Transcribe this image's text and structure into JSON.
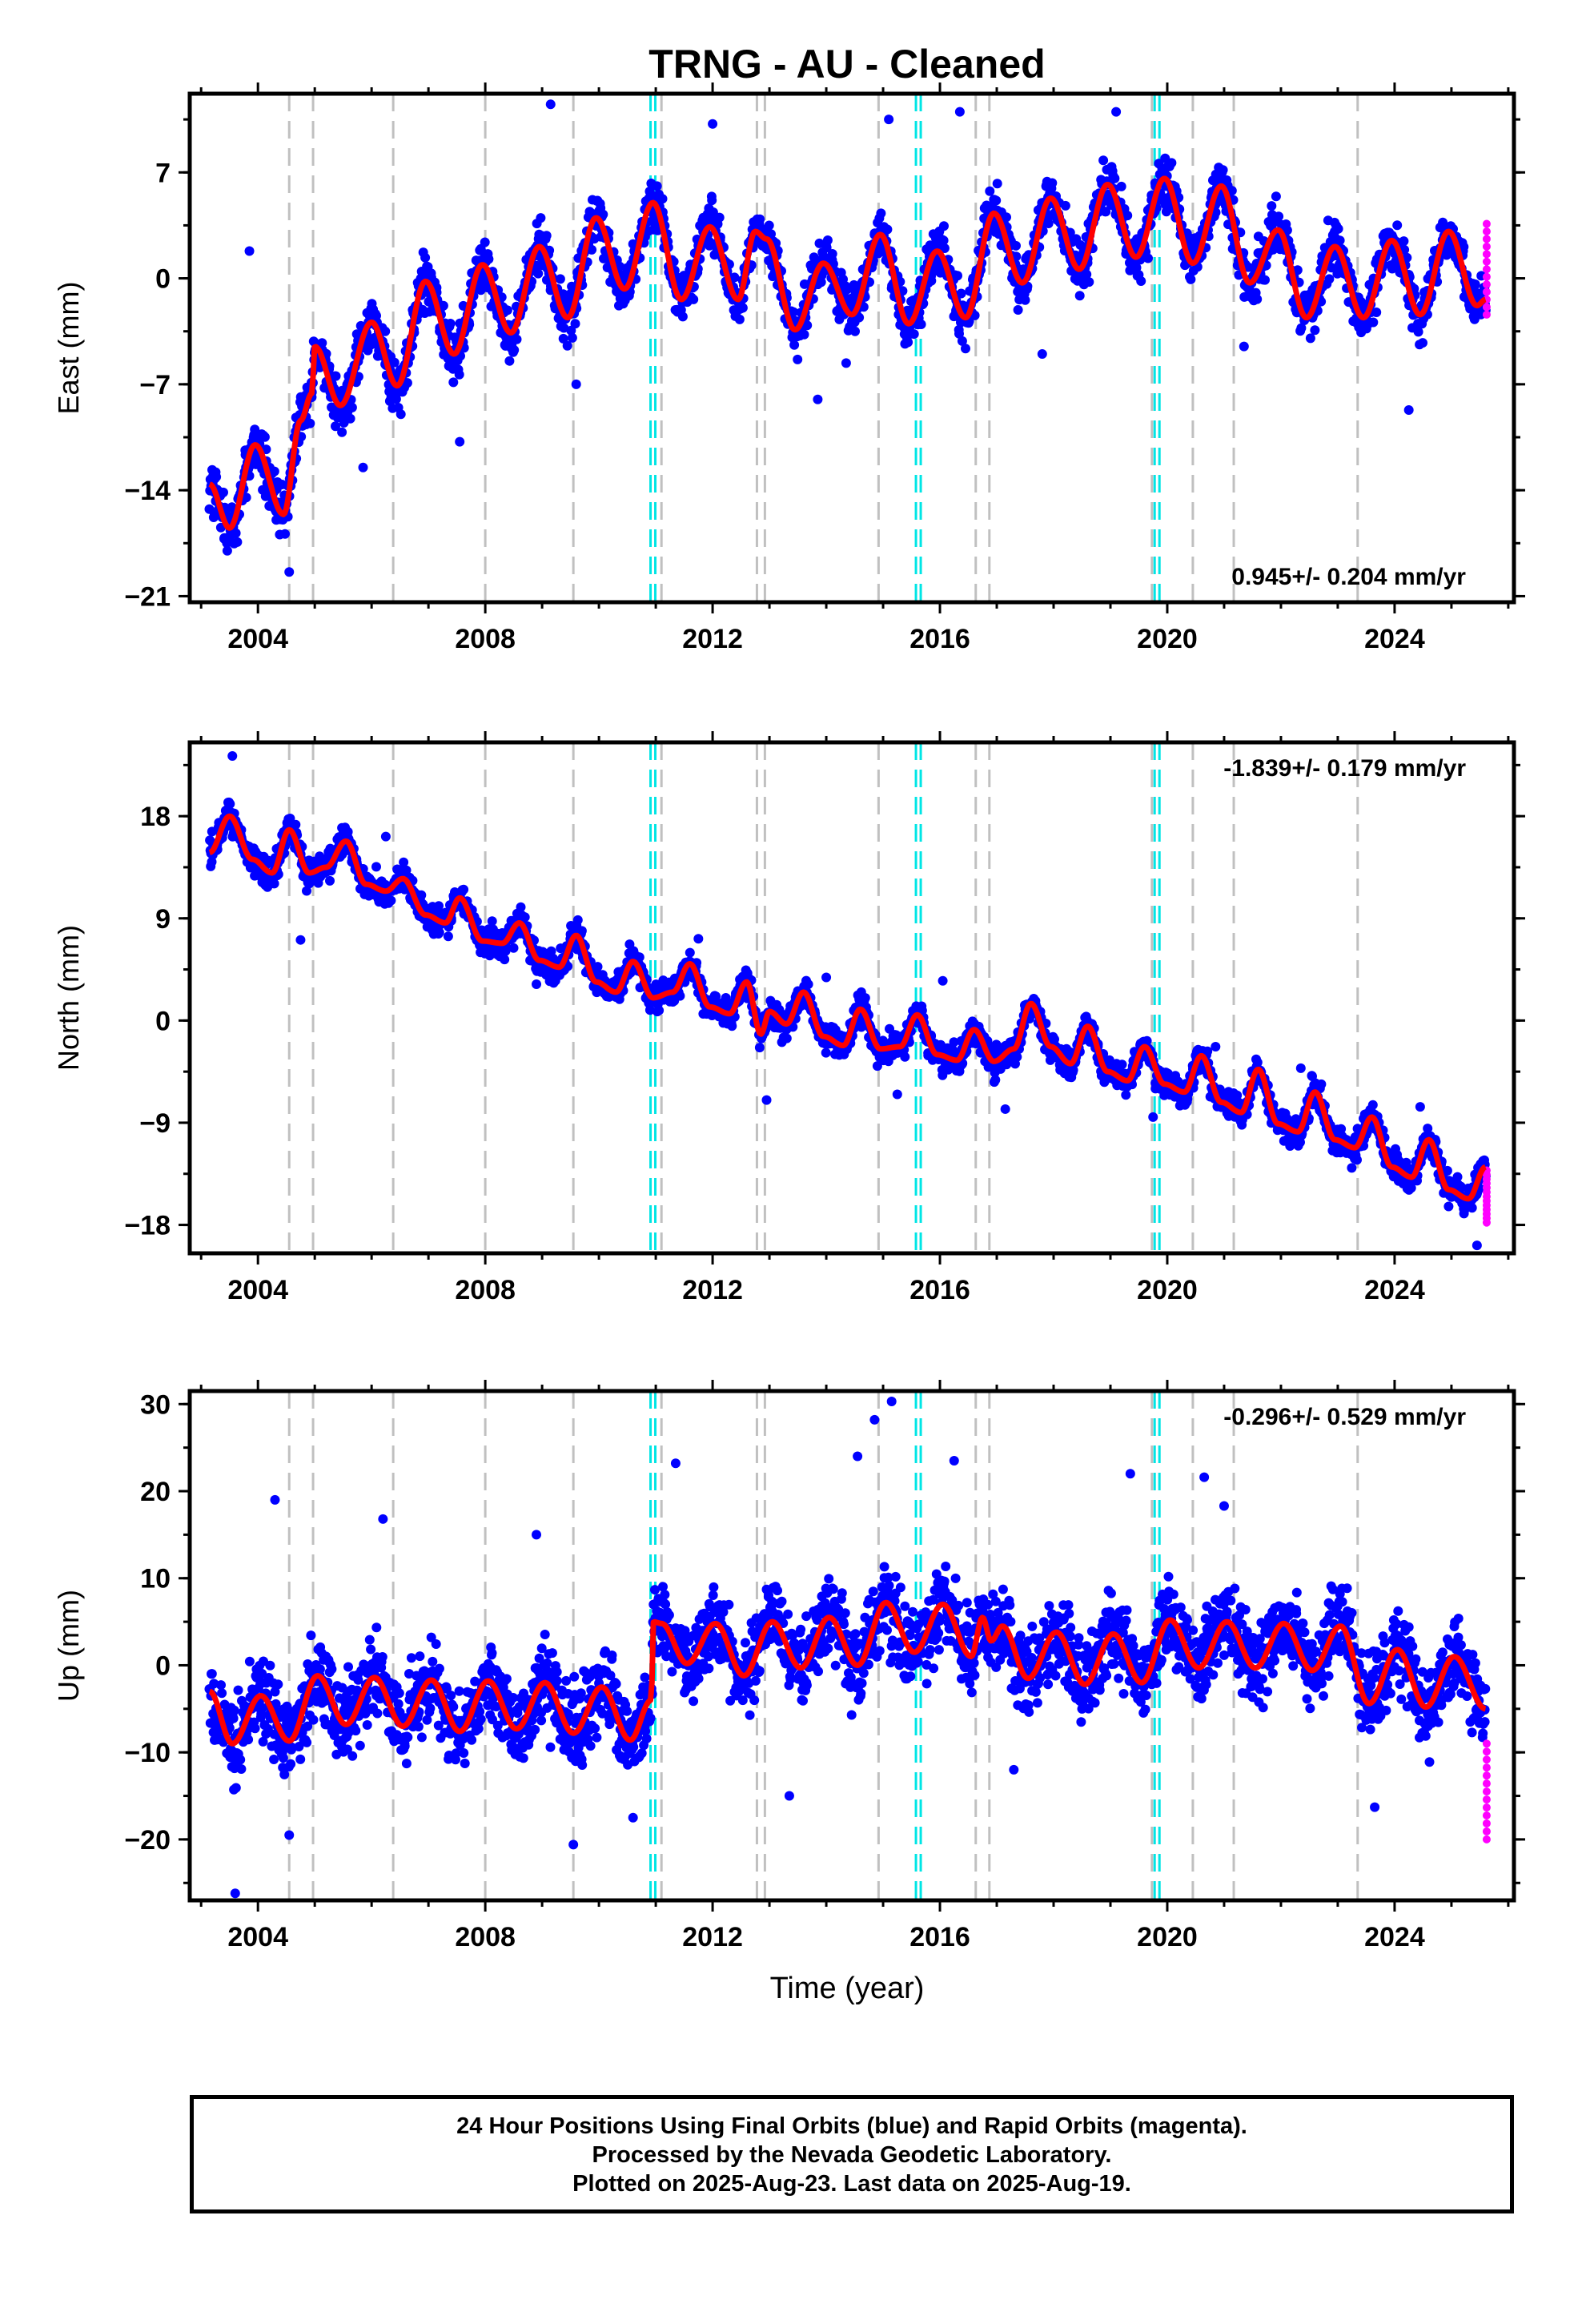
{
  "title": "TRNG  - AU - Cleaned",
  "footer": {
    "line1": "24 Hour Positions Using Final Orbits (blue) and Rapid Orbits (magenta).",
    "line2": "Processed by the Nevada Geodetic Laboratory.",
    "line3": "Plotted on 2025-Aug-23. Last data on 2025-Aug-19."
  },
  "colors": {
    "final_orbits": "#0000ff",
    "rapid_orbits": "#ff00ff",
    "model_fit": "#ff0000",
    "equipment_change": "#c0c0c0",
    "earthquake": "#00e5e5"
  },
  "chart_data": [
    {
      "type": "scatter",
      "ylabel": "East (mm)",
      "xlabel": "",
      "xlim": [
        2002.8,
        2026.1
      ],
      "ylim": [
        -21.4,
        12.2
      ],
      "xticks": [
        2004,
        2008,
        2012,
        2016,
        2020,
        2024
      ],
      "yticks": [
        -21,
        -14,
        -7,
        0,
        7
      ],
      "rate_label": "0.945+/- 0.204 mm/yr",
      "rate_position": "bottom-right",
      "gray_lines": [
        2004.55,
        2004.97,
        2006.38,
        2008.0,
        2009.55,
        2011.1,
        2012.78,
        2012.92,
        2014.92,
        2016.63,
        2016.87,
        2019.73,
        2020.45,
        2021.17,
        2023.35
      ],
      "cyan_lines": [
        2010.95,
        2015.62,
        2019.82
      ],
      "fit": [
        {
          "x": 2003.15,
          "y": -13.6
        },
        {
          "x": 2003.5,
          "y": -16.5
        },
        {
          "x": 2003.95,
          "y": -11.0
        },
        {
          "x": 2004.45,
          "y": -15.6
        },
        {
          "x": 2004.75,
          "y": -9.4
        },
        {
          "x": 2004.95,
          "y": -7.6
        },
        {
          "x": 2005.0,
          "y": -4.5
        },
        {
          "x": 2005.45,
          "y": -8.4
        },
        {
          "x": 2006.0,
          "y": -2.9
        },
        {
          "x": 2006.45,
          "y": -7.1
        },
        {
          "x": 2006.95,
          "y": -0.2
        },
        {
          "x": 2007.45,
          "y": -5.0
        },
        {
          "x": 2007.95,
          "y": 0.9
        },
        {
          "x": 2008.45,
          "y": -3.6
        },
        {
          "x": 2008.95,
          "y": 2.1
        },
        {
          "x": 2009.45,
          "y": -2.6
        },
        {
          "x": 2009.95,
          "y": 4.0
        },
        {
          "x": 2010.45,
          "y": -0.7
        },
        {
          "x": 2010.95,
          "y": 5.0
        },
        {
          "x": 2011.45,
          "y": -1.4
        },
        {
          "x": 2011.95,
          "y": 3.4
        },
        {
          "x": 2012.45,
          "y": -1.4
        },
        {
          "x": 2012.75,
          "y": 3.1
        },
        {
          "x": 2012.95,
          "y": 2.6
        },
        {
          "x": 2013.45,
          "y": -3.4
        },
        {
          "x": 2013.95,
          "y": 1.0
        },
        {
          "x": 2014.45,
          "y": -2.4
        },
        {
          "x": 2014.95,
          "y": 2.9
        },
        {
          "x": 2015.45,
          "y": -3.0
        },
        {
          "x": 2015.95,
          "y": 1.8
        },
        {
          "x": 2016.45,
          "y": -2.6
        },
        {
          "x": 2016.95,
          "y": 4.3
        },
        {
          "x": 2017.45,
          "y": -0.3
        },
        {
          "x": 2017.95,
          "y": 5.3
        },
        {
          "x": 2018.45,
          "y": 0.6
        },
        {
          "x": 2018.95,
          "y": 6.2
        },
        {
          "x": 2019.45,
          "y": 1.4
        },
        {
          "x": 2019.95,
          "y": 6.6
        },
        {
          "x": 2020.45,
          "y": 1.0
        },
        {
          "x": 2020.95,
          "y": 6.1
        },
        {
          "x": 2021.45,
          "y": -0.3
        },
        {
          "x": 2021.95,
          "y": 3.2
        },
        {
          "x": 2022.45,
          "y": -2.6
        },
        {
          "x": 2022.95,
          "y": 2.1
        },
        {
          "x": 2023.45,
          "y": -2.6
        },
        {
          "x": 2023.95,
          "y": 2.5
        },
        {
          "x": 2024.45,
          "y": -2.4
        },
        {
          "x": 2024.95,
          "y": 3.1
        },
        {
          "x": 2025.45,
          "y": -1.8
        },
        {
          "x": 2025.6,
          "y": -1.4
        }
      ],
      "scatter_half_width": 2.8,
      "rapid": {
        "x": 2025.62,
        "y_min": -2.4,
        "y_max": 3.6
      },
      "outliers": [
        {
          "x": 2003.85,
          "y": 1.8
        },
        {
          "x": 2007.55,
          "y": -10.8
        },
        {
          "x": 2009.15,
          "y": 11.5
        },
        {
          "x": 2017.8,
          "y": -5.0
        },
        {
          "x": 2024.25,
          "y": -8.7
        },
        {
          "x": 2012.0,
          "y": 10.2
        },
        {
          "x": 2015.1,
          "y": 10.5
        },
        {
          "x": 2019.1,
          "y": 11.0
        },
        {
          "x": 2021.35,
          "y": -4.5
        },
        {
          "x": 2014.35,
          "y": -5.6
        },
        {
          "x": 2009.6,
          "y": -7.0
        },
        {
          "x": 2005.85,
          "y": -12.5
        },
        {
          "x": 2004.55,
          "y": -19.4
        },
        {
          "x": 2016.35,
          "y": 11.0
        },
        {
          "x": 2013.85,
          "y": -8.0
        }
      ]
    },
    {
      "type": "scatter",
      "ylabel": "North (mm)",
      "xlabel": "",
      "xlim": [
        2002.8,
        2026.1
      ],
      "ylim": [
        -20.5,
        24.5
      ],
      "xticks": [
        2004,
        2008,
        2012,
        2016,
        2020,
        2024
      ],
      "yticks": [
        -18,
        -9,
        0,
        9,
        18
      ],
      "rate_label": "-1.839+/- 0.179 mm/yr",
      "rate_position": "top-right",
      "gray_lines": [
        2004.55,
        2004.97,
        2006.38,
        2008.0,
        2009.55,
        2011.1,
        2012.78,
        2012.92,
        2014.92,
        2016.63,
        2016.87,
        2019.73,
        2020.45,
        2021.17,
        2023.35
      ],
      "cyan_lines": [
        2010.95,
        2015.62,
        2019.82
      ],
      "fit": [
        {
          "x": 2003.15,
          "y": 14.8
        },
        {
          "x": 2003.5,
          "y": 18.0
        },
        {
          "x": 2003.9,
          "y": 14.2
        },
        {
          "x": 2004.25,
          "y": 13.0
        },
        {
          "x": 2004.55,
          "y": 16.8
        },
        {
          "x": 2004.9,
          "y": 13.0
        },
        {
          "x": 2005.2,
          "y": 13.5
        },
        {
          "x": 2005.55,
          "y": 15.8
        },
        {
          "x": 2005.9,
          "y": 12.0
        },
        {
          "x": 2006.25,
          "y": 11.4
        },
        {
          "x": 2006.55,
          "y": 12.5
        },
        {
          "x": 2006.95,
          "y": 9.3
        },
        {
          "x": 2007.3,
          "y": 8.6
        },
        {
          "x": 2007.55,
          "y": 10.8
        },
        {
          "x": 2007.95,
          "y": 7.0
        },
        {
          "x": 2008.3,
          "y": 6.8
        },
        {
          "x": 2008.6,
          "y": 8.6
        },
        {
          "x": 2008.95,
          "y": 5.3
        },
        {
          "x": 2009.3,
          "y": 4.7
        },
        {
          "x": 2009.6,
          "y": 7.5
        },
        {
          "x": 2009.95,
          "y": 3.4
        },
        {
          "x": 2010.3,
          "y": 2.5
        },
        {
          "x": 2010.6,
          "y": 5.2
        },
        {
          "x": 2010.95,
          "y": 2.0
        },
        {
          "x": 2011.3,
          "y": 2.5
        },
        {
          "x": 2011.6,
          "y": 5.0
        },
        {
          "x": 2011.95,
          "y": 1.2
        },
        {
          "x": 2012.3,
          "y": 0.6
        },
        {
          "x": 2012.6,
          "y": 3.4
        },
        {
          "x": 2012.85,
          "y": -1.2
        },
        {
          "x": 2013.0,
          "y": 0.8
        },
        {
          "x": 2013.3,
          "y": -0.3
        },
        {
          "x": 2013.6,
          "y": 2.5
        },
        {
          "x": 2013.95,
          "y": -1.4
        },
        {
          "x": 2014.3,
          "y": -2.2
        },
        {
          "x": 2014.6,
          "y": 1.0
        },
        {
          "x": 2014.95,
          "y": -2.5
        },
        {
          "x": 2015.3,
          "y": -2.3
        },
        {
          "x": 2015.6,
          "y": 0.5
        },
        {
          "x": 2015.95,
          "y": -3.0
        },
        {
          "x": 2016.3,
          "y": -3.5
        },
        {
          "x": 2016.6,
          "y": -0.8
        },
        {
          "x": 2016.95,
          "y": -3.6
        },
        {
          "x": 2017.3,
          "y": -2.5
        },
        {
          "x": 2017.6,
          "y": 1.5
        },
        {
          "x": 2017.95,
          "y": -2.3
        },
        {
          "x": 2018.3,
          "y": -3.8
        },
        {
          "x": 2018.6,
          "y": -0.5
        },
        {
          "x": 2018.95,
          "y": -4.5
        },
        {
          "x": 2019.3,
          "y": -5.3
        },
        {
          "x": 2019.6,
          "y": -2.3
        },
        {
          "x": 2019.95,
          "y": -5.6
        },
        {
          "x": 2020.3,
          "y": -6.3
        },
        {
          "x": 2020.6,
          "y": -3.1
        },
        {
          "x": 2020.95,
          "y": -7.2
        },
        {
          "x": 2021.3,
          "y": -8.1
        },
        {
          "x": 2021.6,
          "y": -4.3
        },
        {
          "x": 2021.95,
          "y": -9.1
        },
        {
          "x": 2022.3,
          "y": -9.8
        },
        {
          "x": 2022.6,
          "y": -6.3
        },
        {
          "x": 2022.95,
          "y": -10.5
        },
        {
          "x": 2023.3,
          "y": -11.2
        },
        {
          "x": 2023.6,
          "y": -8.5
        },
        {
          "x": 2023.95,
          "y": -12.9
        },
        {
          "x": 2024.3,
          "y": -13.8
        },
        {
          "x": 2024.6,
          "y": -10.5
        },
        {
          "x": 2024.95,
          "y": -14.9
        },
        {
          "x": 2025.3,
          "y": -15.7
        },
        {
          "x": 2025.6,
          "y": -12.9
        }
      ],
      "scatter_half_width": 2.2,
      "rapid": {
        "x": 2025.62,
        "y_min": -17.8,
        "y_max": -13.2
      },
      "outliers": [
        {
          "x": 2003.55,
          "y": 23.3
        },
        {
          "x": 2004.75,
          "y": 7.1
        },
        {
          "x": 2008.9,
          "y": 3.2
        },
        {
          "x": 2015.25,
          "y": -6.5
        },
        {
          "x": 2016.05,
          "y": 3.5
        },
        {
          "x": 2017.15,
          "y": -7.8
        },
        {
          "x": 2012.95,
          "y": -7.0
        },
        {
          "x": 2019.75,
          "y": -8.5
        },
        {
          "x": 2020.85,
          "y": -2.3
        },
        {
          "x": 2025.45,
          "y": -19.8
        },
        {
          "x": 2011.75,
          "y": 7.2
        },
        {
          "x": 2006.25,
          "y": 16.2
        },
        {
          "x": 2022.35,
          "y": -4.2
        },
        {
          "x": 2024.45,
          "y": -7.6
        },
        {
          "x": 2014.0,
          "y": 3.8
        }
      ]
    },
    {
      "type": "scatter",
      "ylabel": "Up (mm)",
      "xlabel": "Time (year)",
      "xlim": [
        2002.8,
        2026.1
      ],
      "ylim": [
        -27,
        31.5
      ],
      "xticks": [
        2004,
        2008,
        2012,
        2016,
        2020,
        2024
      ],
      "yticks": [
        -20,
        -10,
        0,
        10,
        20,
        30
      ],
      "rate_label": "-0.296+/- 0.529 mm/yr",
      "rate_position": "top-right",
      "gray_lines": [
        2004.55,
        2004.97,
        2006.38,
        2008.0,
        2009.55,
        2011.1,
        2012.78,
        2012.92,
        2014.92,
        2016.63,
        2016.87,
        2019.73,
        2020.45,
        2021.17,
        2023.35
      ],
      "cyan_lines": [
        2010.95,
        2015.62,
        2019.82
      ],
      "fit": [
        {
          "x": 2003.15,
          "y": -3.0
        },
        {
          "x": 2003.55,
          "y": -9.0
        },
        {
          "x": 2004.05,
          "y": -3.5
        },
        {
          "x": 2004.55,
          "y": -8.7
        },
        {
          "x": 2005.05,
          "y": -1.2
        },
        {
          "x": 2005.55,
          "y": -6.8
        },
        {
          "x": 2006.05,
          "y": -1.4
        },
        {
          "x": 2006.55,
          "y": -7.0
        },
        {
          "x": 2007.05,
          "y": -1.7
        },
        {
          "x": 2007.55,
          "y": -7.6
        },
        {
          "x": 2008.05,
          "y": -1.8
        },
        {
          "x": 2008.55,
          "y": -7.3
        },
        {
          "x": 2009.05,
          "y": -2.0
        },
        {
          "x": 2009.55,
          "y": -7.8
        },
        {
          "x": 2010.05,
          "y": -2.5
        },
        {
          "x": 2010.55,
          "y": -8.6
        },
        {
          "x": 2010.92,
          "y": -4.0
        },
        {
          "x": 2010.96,
          "y": 5.0
        },
        {
          "x": 2011.1,
          "y": 4.8
        },
        {
          "x": 2011.55,
          "y": 0.2
        },
        {
          "x": 2012.05,
          "y": 4.8
        },
        {
          "x": 2012.55,
          "y": -1.2
        },
        {
          "x": 2013.05,
          "y": 5.0
        },
        {
          "x": 2013.55,
          "y": -0.3
        },
        {
          "x": 2014.05,
          "y": 5.5
        },
        {
          "x": 2014.55,
          "y": 0.0
        },
        {
          "x": 2015.05,
          "y": 7.2
        },
        {
          "x": 2015.55,
          "y": 1.5
        },
        {
          "x": 2016.05,
          "y": 7.0
        },
        {
          "x": 2016.55,
          "y": 1.0
        },
        {
          "x": 2016.75,
          "y": 5.5
        },
        {
          "x": 2016.9,
          "y": 2.8
        },
        {
          "x": 2017.1,
          "y": 4.5
        },
        {
          "x": 2017.55,
          "y": -1.5
        },
        {
          "x": 2018.05,
          "y": 3.8
        },
        {
          "x": 2018.55,
          "y": -2.2
        },
        {
          "x": 2019.05,
          "y": 3.6
        },
        {
          "x": 2019.55,
          "y": -2.0
        },
        {
          "x": 2020.05,
          "y": 5.2
        },
        {
          "x": 2020.55,
          "y": -0.3
        },
        {
          "x": 2021.05,
          "y": 5.0
        },
        {
          "x": 2021.55,
          "y": -0.3
        },
        {
          "x": 2022.05,
          "y": 4.8
        },
        {
          "x": 2022.55,
          "y": -0.6
        },
        {
          "x": 2023.05,
          "y": 4.5
        },
        {
          "x": 2023.55,
          "y": -4.4
        },
        {
          "x": 2024.05,
          "y": 1.8
        },
        {
          "x": 2024.55,
          "y": -4.8
        },
        {
          "x": 2025.05,
          "y": 1.0
        },
        {
          "x": 2025.6,
          "y": -5.0
        }
      ],
      "scatter_half_width": 8.0,
      "rapid": {
        "x": 2025.62,
        "y_min": -20.0,
        "y_max": -9.0
      },
      "outliers": [
        {
          "x": 2003.6,
          "y": -26.2
        },
        {
          "x": 2004.3,
          "y": 19.0
        },
        {
          "x": 2006.2,
          "y": 16.8
        },
        {
          "x": 2009.55,
          "y": -20.6
        },
        {
          "x": 2011.35,
          "y": 23.2
        },
        {
          "x": 2014.55,
          "y": 24.0
        },
        {
          "x": 2014.85,
          "y": 28.2
        },
        {
          "x": 2015.15,
          "y": 30.3
        },
        {
          "x": 2016.25,
          "y": 23.5
        },
        {
          "x": 2013.35,
          "y": -15.0
        },
        {
          "x": 2019.35,
          "y": 22.0
        },
        {
          "x": 2020.65,
          "y": 21.6
        },
        {
          "x": 2023.65,
          "y": -16.3
        },
        {
          "x": 2021.0,
          "y": 18.3
        },
        {
          "x": 2017.3,
          "y": -12.0
        },
        {
          "x": 2008.9,
          "y": 15.0
        },
        {
          "x": 2004.55,
          "y": -19.5
        },
        {
          "x": 2010.6,
          "y": -17.5
        }
      ]
    }
  ]
}
